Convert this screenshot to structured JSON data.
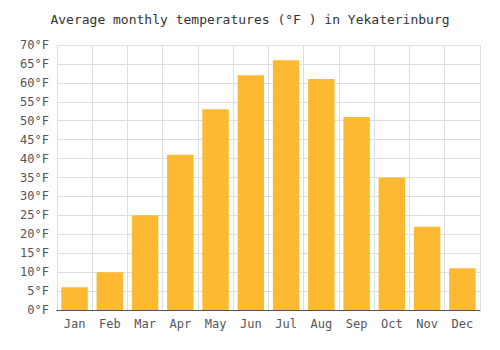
{
  "chart_data": {
    "type": "bar",
    "title": "Average monthly temperatures (°F ) in Yekaterinburg",
    "categories": [
      "Jan",
      "Feb",
      "Mar",
      "Apr",
      "May",
      "Jun",
      "Jul",
      "Aug",
      "Sep",
      "Oct",
      "Nov",
      "Dec"
    ],
    "values": [
      6,
      10,
      25,
      41,
      53,
      62,
      66,
      61,
      51,
      35,
      22,
      11
    ],
    "color": "#FDB931",
    "ylim": [
      0,
      70
    ],
    "yticks": [
      {
        "value": 0,
        "label": "0°F"
      },
      {
        "value": 5,
        "label": "5°F"
      },
      {
        "value": 10,
        "label": "10°F"
      },
      {
        "value": 15,
        "label": "15°F"
      },
      {
        "value": 20,
        "label": "20°F"
      },
      {
        "value": 25,
        "label": "25°F"
      },
      {
        "value": 30,
        "label": "30°F"
      },
      {
        "value": 35,
        "label": "35°F"
      },
      {
        "value": 40,
        "label": "40°F"
      },
      {
        "value": 45,
        "label": "45°F"
      },
      {
        "value": 50,
        "label": "50°F"
      },
      {
        "value": 55,
        "label": "55°F"
      },
      {
        "value": 60,
        "label": "60°F"
      },
      {
        "value": 65,
        "label": "65°F"
      },
      {
        "value": 70,
        "label": "70°F"
      }
    ],
    "grid": true
  }
}
